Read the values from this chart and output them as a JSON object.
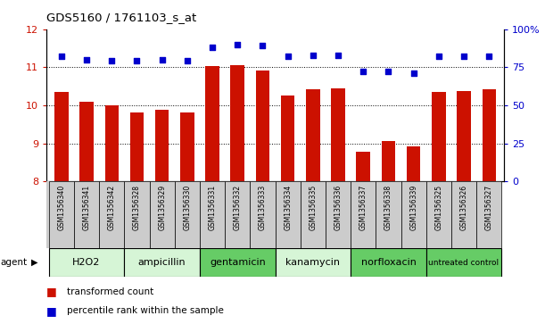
{
  "title": "GDS5160 / 1761103_s_at",
  "samples": [
    "GSM1356340",
    "GSM1356341",
    "GSM1356342",
    "GSM1356328",
    "GSM1356329",
    "GSM1356330",
    "GSM1356331",
    "GSM1356332",
    "GSM1356333",
    "GSM1356334",
    "GSM1356335",
    "GSM1356336",
    "GSM1356337",
    "GSM1356338",
    "GSM1356339",
    "GSM1356325",
    "GSM1356326",
    "GSM1356327"
  ],
  "transformed_count": [
    10.35,
    10.1,
    10.0,
    9.82,
    9.88,
    9.82,
    11.02,
    11.05,
    10.92,
    10.25,
    10.42,
    10.45,
    8.78,
    9.05,
    8.92,
    10.35,
    10.38,
    10.42
  ],
  "percentile_rank": [
    82,
    80,
    79,
    79,
    80,
    79,
    88,
    90,
    89,
    82,
    83,
    83,
    72,
    72,
    71,
    82,
    82,
    82
  ],
  "agents": [
    {
      "label": "H2O2",
      "start": 0,
      "end": 3,
      "color": "#d6f5d6"
    },
    {
      "label": "ampicillin",
      "start": 3,
      "end": 6,
      "color": "#d6f5d6"
    },
    {
      "label": "gentamicin",
      "start": 6,
      "end": 9,
      "color": "#66cc66"
    },
    {
      "label": "kanamycin",
      "start": 9,
      "end": 12,
      "color": "#d6f5d6"
    },
    {
      "label": "norfloxacin",
      "start": 12,
      "end": 15,
      "color": "#66cc66"
    },
    {
      "label": "untreated control",
      "start": 15,
      "end": 18,
      "color": "#66cc66"
    }
  ],
  "ylim_left": [
    8,
    12
  ],
  "ylim_right": [
    0,
    100
  ],
  "yticks_left": [
    8,
    9,
    10,
    11,
    12
  ],
  "yticks_right": [
    0,
    25,
    50,
    75,
    100
  ],
  "ytick_labels_right": [
    "0",
    "25",
    "50",
    "75",
    "100%"
  ],
  "bar_color": "#cc1100",
  "dot_color": "#0000cc",
  "grid_color": "#000000",
  "bg_color": "#ffffff",
  "bar_width": 0.55,
  "dot_size": 18,
  "xtick_bg": "#cccccc",
  "plot_bg": "#ffffff"
}
